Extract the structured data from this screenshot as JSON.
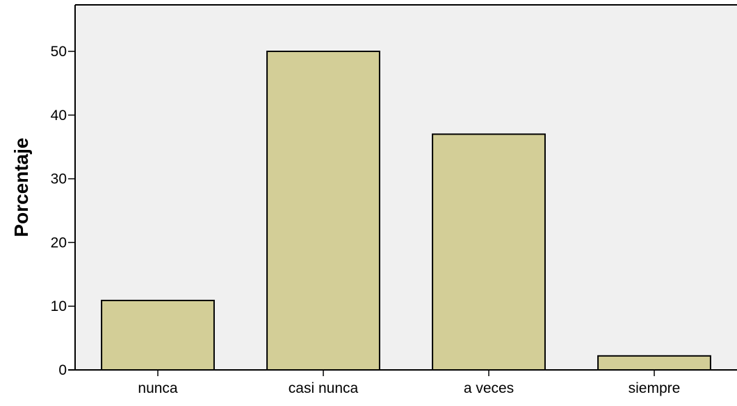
{
  "chart_data": {
    "type": "bar",
    "title": "",
    "xlabel": "",
    "ylabel": "Porcentaje",
    "categories": [
      "nunca",
      "casi nunca",
      "a veces",
      "siempre"
    ],
    "values": [
      10.9,
      50.0,
      37.0,
      2.2
    ],
    "ylim": [
      0,
      57.3
    ],
    "yticks": [
      0,
      10,
      20,
      30,
      40,
      50
    ],
    "grid": false,
    "legend": "none",
    "colors": {
      "plot_background": "#f0f0f0",
      "bar_fill": "#d3ce97",
      "bar_stroke": "#000000",
      "axis": "#000000"
    }
  }
}
